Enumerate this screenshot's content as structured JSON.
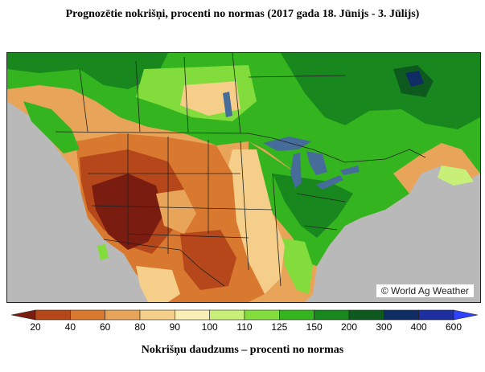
{
  "title": "Prognozētie nokrišņi, procenti no normas (2017 gada 18. Jūnijs - 3. Jūlijs)",
  "watermark": "© World Ag Weather",
  "subtitle": "Nokrišņu daudzums – procenti no normas",
  "legend": {
    "colors": [
      "#7a1c10",
      "#b5471a",
      "#d9782f",
      "#e8a55a",
      "#f5cf8a",
      "#fbeeb4",
      "#c8f078",
      "#82dc3c",
      "#34b41e",
      "#17871e",
      "#0e5a1e",
      "#102c64",
      "#1c2ea0",
      "#2f43ff"
    ],
    "labels": [
      "20",
      "40",
      "60",
      "80",
      "90",
      "100",
      "110",
      "125",
      "150",
      "200",
      "300",
      "400",
      "600"
    ]
  },
  "palette": {
    "dark_red": "#7a1c10",
    "brown": "#b5471a",
    "orange": "#d9782f",
    "tan": "#e8a55a",
    "beige": "#f5cf8a",
    "pale": "#fbeeb4",
    "light_green": "#c8f078",
    "green": "#82dc3c",
    "mid_green": "#34b41e",
    "dark_green": "#17871e",
    "deep_green": "#0e5a1e",
    "navy": "#102c64",
    "ocean": "#b9b9b9",
    "lakes": "#466c9a"
  }
}
